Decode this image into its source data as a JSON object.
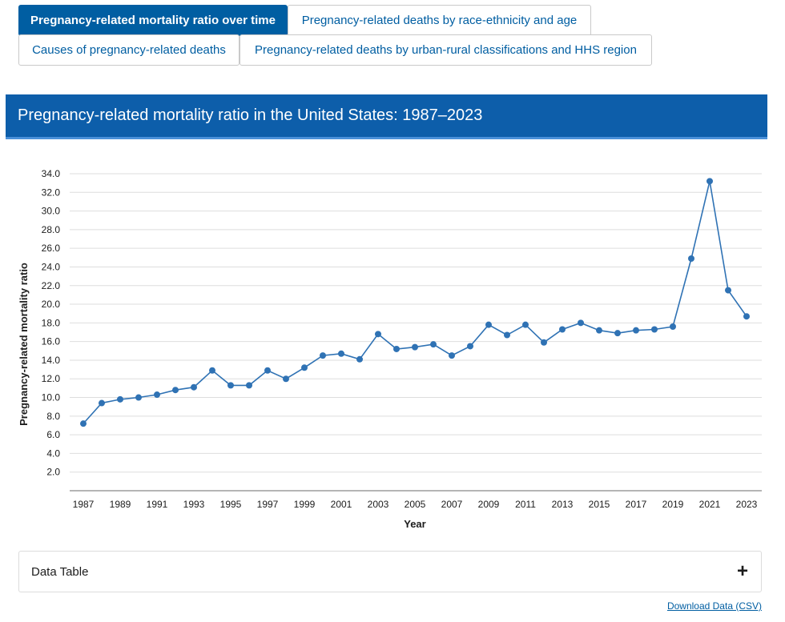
{
  "tabs": [
    {
      "label": "Pregnancy-related mortality ratio over time",
      "active": true
    },
    {
      "label": "Pregnancy-related deaths by race-ethnicity and age",
      "active": false
    },
    {
      "label": "Causes of pregnancy-related deaths",
      "active": false
    },
    {
      "label": "Pregnancy-related deaths by urban-rural classifications and HHS region",
      "active": false
    }
  ],
  "banner": {
    "title": "Pregnancy-related mortality ratio in the United States: 1987–2023"
  },
  "chart_data": {
    "type": "line",
    "title": "",
    "xlabel": "Year",
    "ylabel": "Pregnancy-related mortality ratio",
    "x": [
      1987,
      1988,
      1989,
      1990,
      1991,
      1992,
      1993,
      1994,
      1995,
      1996,
      1997,
      1998,
      1999,
      2000,
      2001,
      2002,
      2003,
      2004,
      2005,
      2006,
      2007,
      2008,
      2009,
      2010,
      2011,
      2012,
      2013,
      2014,
      2015,
      2016,
      2017,
      2018,
      2019,
      2020,
      2021,
      2022,
      2023
    ],
    "series": [
      {
        "values": [
          7.2,
          9.4,
          9.8,
          10.0,
          10.3,
          10.8,
          11.1,
          12.9,
          11.3,
          11.3,
          12.9,
          12.0,
          13.2,
          14.5,
          14.7,
          14.1,
          16.8,
          15.2,
          15.4,
          15.7,
          14.5,
          15.5,
          17.8,
          16.7,
          17.8,
          15.9,
          17.3,
          18.0,
          17.2,
          16.9,
          17.2,
          17.3,
          17.6,
          24.9,
          33.2,
          21.5,
          18.7
        ]
      }
    ],
    "x_tick_labels": [
      "1987",
      "1989",
      "1991",
      "1993",
      "1995",
      "1997",
      "1999",
      "2001",
      "2003",
      "2005",
      "2007",
      "2009",
      "2011",
      "2013",
      "2015",
      "2017",
      "2019",
      "2021",
      "2023"
    ],
    "y_tick_labels": [
      "2.0",
      "4.0",
      "6.0",
      "8.0",
      "10.0",
      "12.0",
      "14.0",
      "16.0",
      "18.0",
      "20.0",
      "22.0",
      "24.0",
      "26.0",
      "28.0",
      "30.0",
      "32.0",
      "34.0"
    ],
    "ylim": [
      0,
      34
    ],
    "grid": true,
    "line_color": "#2f72b4"
  },
  "accordion": {
    "label": "Data Table",
    "icon": "plus-icon",
    "icon_glyph": "+"
  },
  "download": {
    "label": "Download Data (CSV)"
  }
}
